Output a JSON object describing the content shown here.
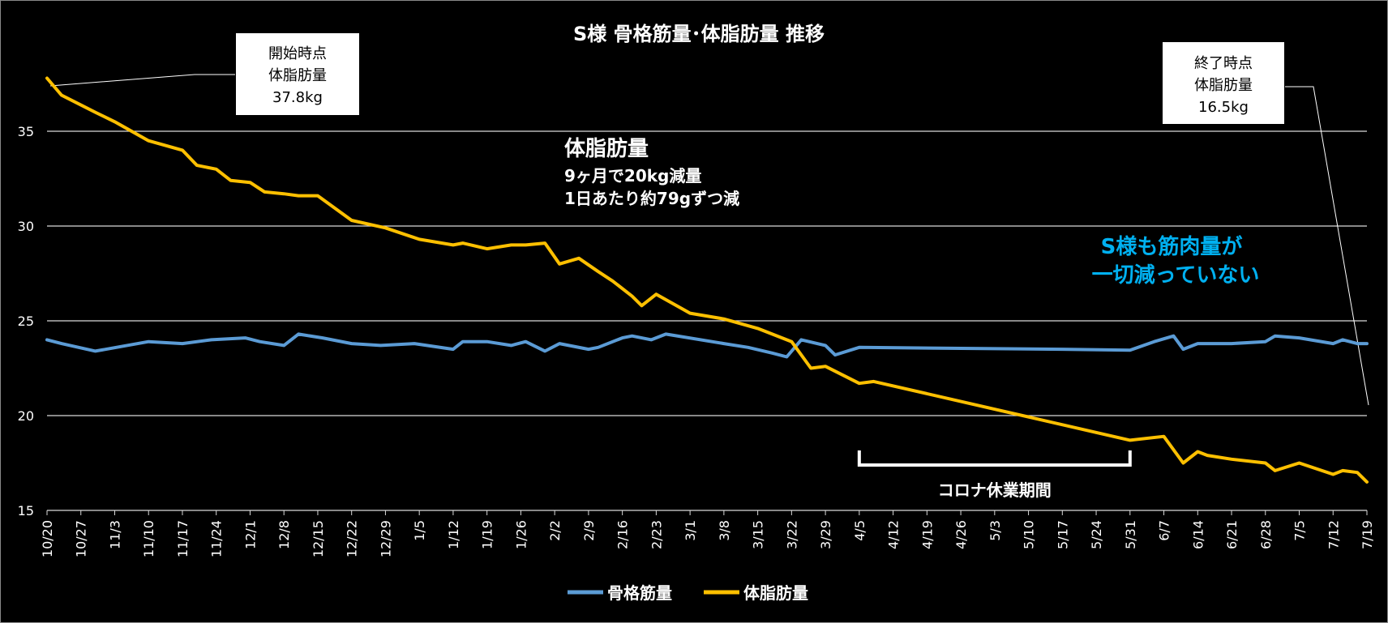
{
  "chart_data": {
    "type": "line",
    "title": "S様 骨格筋量･体脂肪量 推移",
    "ylim": [
      15,
      39.5
    ],
    "yticks": [
      15,
      20,
      25,
      30,
      35
    ],
    "grid": true,
    "legend_placement": "bottom",
    "x_tick_labels": [
      "10/20",
      "10/27",
      "11/3",
      "11/10",
      "11/17",
      "11/24",
      "12/1",
      "12/8",
      "12/15",
      "12/22",
      "12/29",
      "1/5",
      "1/12",
      "1/19",
      "1/26",
      "2/2",
      "2/9",
      "2/16",
      "2/23",
      "3/1",
      "3/8",
      "3/15",
      "3/22",
      "3/29",
      "4/5",
      "4/12",
      "4/19",
      "4/26",
      "5/3",
      "5/10",
      "5/17",
      "5/24",
      "5/31",
      "6/7",
      "6/14",
      "6/21",
      "6/28",
      "7/5",
      "7/12",
      "7/19"
    ],
    "x_tick_days": [
      0,
      7,
      14,
      21,
      28,
      35,
      42,
      49,
      56,
      63,
      70,
      77,
      84,
      91,
      98,
      105,
      112,
      119,
      126,
      133,
      140,
      147,
      154,
      161,
      168,
      175,
      182,
      189,
      196,
      203,
      210,
      217,
      224,
      231,
      238,
      245,
      252,
      259,
      266,
      273
    ],
    "series": [
      {
        "name": "骨格筋量",
        "color": "#5b9bd5",
        "x": [
          0,
          3,
          10,
          21,
          28,
          34,
          41,
          44,
          49,
          52,
          57,
          63,
          69,
          76,
          84,
          86,
          91,
          96,
          99,
          103,
          106,
          112,
          114,
          119,
          121,
          125,
          128,
          140,
          145,
          150,
          153,
          156,
          161,
          163,
          168,
          210,
          224,
          229,
          233,
          235,
          238,
          240,
          245,
          252,
          254,
          259,
          266,
          268,
          271,
          273
        ],
        "y": [
          24.0,
          23.8,
          23.4,
          23.9,
          23.8,
          24.0,
          24.1,
          23.9,
          23.7,
          24.3,
          24.1,
          23.8,
          23.7,
          23.8,
          23.5,
          23.9,
          23.9,
          23.7,
          23.9,
          23.4,
          23.8,
          23.5,
          23.6,
          24.1,
          24.2,
          24.0,
          24.3,
          23.8,
          23.6,
          23.3,
          23.1,
          24.0,
          23.7,
          23.2,
          23.6,
          23.5,
          23.45,
          23.9,
          24.2,
          23.5,
          23.8,
          23.8,
          23.8,
          23.9,
          24.2,
          24.1,
          23.8,
          24.0,
          23.8,
          23.8
        ]
      },
      {
        "name": "体脂肪量",
        "color": "#ffc000",
        "x": [
          0,
          3,
          10,
          14,
          21,
          28,
          31,
          35,
          38,
          42,
          45,
          49,
          52,
          56,
          63,
          70,
          77,
          84,
          86,
          91,
          96,
          99,
          103,
          106,
          110,
          114,
          117,
          121,
          123,
          126,
          133,
          140,
          147,
          150,
          154,
          158,
          161,
          168,
          171,
          224,
          231,
          235,
          238,
          240,
          245,
          252,
          254,
          259,
          266,
          268,
          271,
          273
        ],
        "y": [
          37.8,
          36.9,
          36.0,
          35.5,
          34.5,
          34.0,
          33.2,
          33.0,
          32.4,
          32.3,
          31.8,
          31.7,
          31.6,
          31.6,
          30.3,
          29.9,
          29.3,
          29.0,
          29.1,
          28.8,
          29.0,
          29.0,
          29.1,
          28.0,
          28.3,
          27.6,
          27.1,
          26.3,
          25.8,
          26.4,
          25.4,
          25.1,
          24.6,
          24.3,
          23.9,
          22.5,
          22.6,
          21.7,
          21.8,
          18.7,
          18.9,
          17.5,
          18.1,
          17.9,
          17.7,
          17.5,
          17.1,
          17.5,
          16.9,
          17.1,
          17.0,
          16.5
        ]
      }
    ],
    "annotations": {
      "start_box": [
        "開始時点",
        "体脂肪量",
        "37.8kg"
      ],
      "end_box": [
        "終了時点",
        "体脂肪量",
        "16.5kg"
      ],
      "fat_heading": "体脂肪量",
      "fat_line2": "9ヶ月で20kg減量",
      "fat_line3": "1日あたり約79gずつ減",
      "muscle_line1": "S様も筋肉量が",
      "muscle_line2": "一切減っていない",
      "covid_label": "コロナ休業期間",
      "covid_range_days": [
        168,
        224
      ]
    },
    "colors": {
      "background": "#000000",
      "grid": "#d9d9d9",
      "muscle_note": "#00b0f0",
      "text": "#ffffff"
    }
  }
}
